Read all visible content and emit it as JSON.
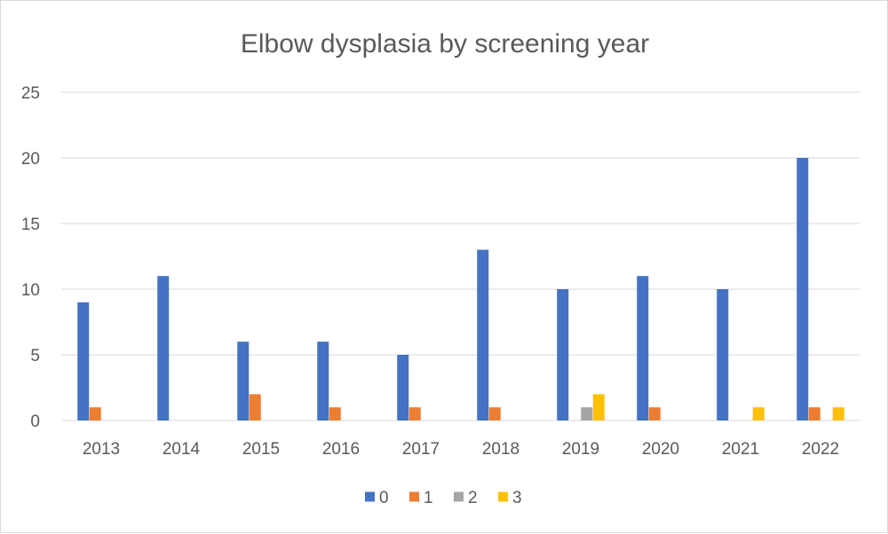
{
  "chart_data": {
    "type": "bar",
    "title": "Elbow dysplasia by screening year",
    "xlabel": "",
    "ylabel": "",
    "categories": [
      "2013",
      "2014",
      "2015",
      "2016",
      "2017",
      "2018",
      "2019",
      "2020",
      "2021",
      "2022"
    ],
    "series": [
      {
        "name": "0",
        "color": "#4472C4",
        "values": [
          9,
          11,
          6,
          6,
          5,
          13,
          10,
          11,
          10,
          20
        ]
      },
      {
        "name": "1",
        "color": "#ED7D31",
        "values": [
          1,
          0,
          2,
          1,
          1,
          1,
          0,
          1,
          0,
          1
        ]
      },
      {
        "name": "2",
        "color": "#A5A5A5",
        "values": [
          0,
          0,
          0,
          0,
          0,
          0,
          1,
          0,
          0,
          0
        ]
      },
      {
        "name": "3",
        "color": "#FFC000",
        "values": [
          0,
          0,
          0,
          0,
          0,
          0,
          2,
          0,
          1,
          1
        ]
      }
    ],
    "ylim": [
      0,
      25
    ],
    "yticks": [
      0,
      5,
      10,
      15,
      20,
      25
    ],
    "grid": true,
    "legend_position": "bottom"
  }
}
